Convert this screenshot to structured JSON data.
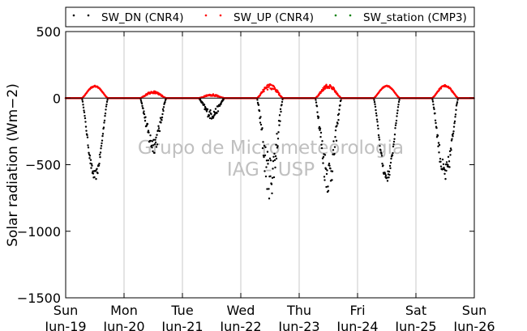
{
  "chart_data": {
    "type": "scatter",
    "title": "",
    "xlabel": "",
    "ylabel": "Solar radiation (Wm−2)",
    "ylim": [
      -1500,
      500
    ],
    "yticks": [
      500,
      0,
      -500,
      -1000,
      -1500
    ],
    "ytick_labels": [
      "500",
      "0",
      "−500",
      "−1000",
      "−1500"
    ],
    "xlim": [
      0,
      7
    ],
    "xticks": [
      {
        "x": 0,
        "day": "Sun",
        "date": "Jun-19"
      },
      {
        "x": 1,
        "day": "Mon",
        "date": "Jun-20"
      },
      {
        "x": 2,
        "day": "Tue",
        "date": "Jun-21"
      },
      {
        "x": 3,
        "day": "Wed",
        "date": "Jun-22"
      },
      {
        "x": 4,
        "day": "Thu",
        "date": "Jun-23"
      },
      {
        "x": 5,
        "day": "Fri",
        "date": "Jun-24"
      },
      {
        "x": 6,
        "day": "Sat",
        "date": "Jun-25"
      },
      {
        "x": 7,
        "day": "Sun",
        "date": "Jun-26"
      }
    ],
    "grid": "vertical",
    "legend_position": "top",
    "watermark": [
      "Grupo de Micrometeorologia",
      "IAG - USP"
    ],
    "series": [
      {
        "name": "SW_DN (CNR4)",
        "color": "#000000",
        "daily_peak": [
          -620,
          -420,
          -160,
          -760,
          -720,
          -630,
          -650
        ],
        "daily_spread": [
          0.12,
          0.35,
          0.45,
          0.45,
          0.4,
          0.12,
          0.25
        ]
      },
      {
        "name": "SW_UP (CNR4)",
        "color": "#ff0000",
        "daily_peak": [
          95,
          55,
          30,
          110,
          105,
          95,
          100
        ],
        "daily_spread": [
          0.1,
          0.35,
          0.45,
          0.4,
          0.3,
          0.08,
          0.15
        ]
      },
      {
        "name": "SW_station (CMP3)",
        "color": "#008000",
        "daily_peak": [
          0,
          0,
          0,
          0,
          0,
          0,
          0
        ],
        "daily_spread": [
          0,
          0,
          0,
          0,
          0,
          0,
          0
        ]
      }
    ]
  }
}
